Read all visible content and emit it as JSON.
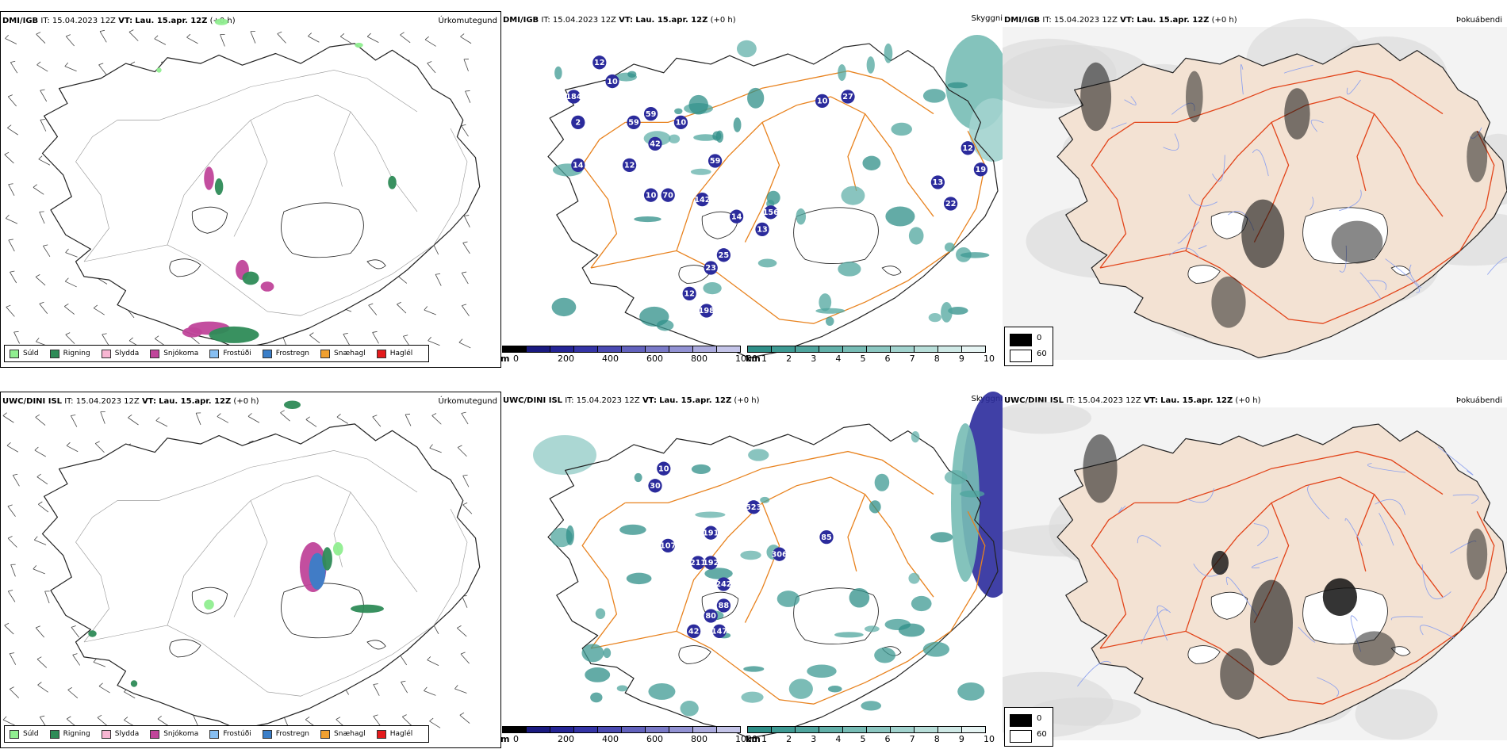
{
  "rows": [
    {
      "model": "DMI/IGB",
      "it_label": "IT:",
      "it_value": "15.04.2023 12Z",
      "vt_label": "VT:",
      "vt_value": "Lau. 15.apr. 12Z",
      "lead": "(+0 h)"
    },
    {
      "model": "UWC/DINI ISL",
      "it_label": "IT:",
      "it_value": "15.04.2023 12Z",
      "vt_label": "VT:",
      "vt_value": "Lau. 15.apr. 12Z",
      "lead": "(+0 h)"
    }
  ],
  "variables": {
    "precip_type": "Úrkomutegund",
    "visibility": "Skyggni",
    "fog": "Þokuábendi"
  },
  "precip_legend": [
    {
      "label": "Súld",
      "color": "#90ee90"
    },
    {
      "label": "Rigning",
      "color": "#2e8b57"
    },
    {
      "label": "Slydda",
      "color": "#f7b6d2"
    },
    {
      "label": "Snjókoma",
      "color": "#c0459a"
    },
    {
      "label": "Frostúði",
      "color": "#87bff2"
    },
    {
      "label": "Frostregn",
      "color": "#3a7ec8"
    },
    {
      "label": "Snæhagl",
      "color": "#f0a030"
    },
    {
      "label": "Haglél",
      "color": "#e41a1c"
    }
  ],
  "height_scale": {
    "unit": "m",
    "ticks": [
      "0",
      "200",
      "400",
      "600",
      "800",
      "1000"
    ],
    "colors": [
      "#000000",
      "#1a1a80",
      "#252596",
      "#3434a6",
      "#4a4ab2",
      "#6262bd",
      "#7a7ac8",
      "#9292d3",
      "#aaaadd",
      "#c4c4e8"
    ]
  },
  "vis_scale": {
    "unit": "km",
    "ticks": [
      "1",
      "2",
      "3",
      "4",
      "5",
      "6",
      "7",
      "8",
      "9",
      "10"
    ],
    "colors": [
      "#2f8f88",
      "#3e9a93",
      "#4fa59e",
      "#62b0a9",
      "#77bcb5",
      "#8cc7c1",
      "#a2d3ce",
      "#b8ded9",
      "#cfe9e6",
      "#e6f4f3"
    ]
  },
  "fog_scale": {
    "values": [
      "0",
      "60"
    ],
    "colors": [
      "#000000",
      "#ffffff"
    ]
  },
  "vis_points": {
    "top": [
      "184",
      "12",
      "10",
      "2",
      "59",
      "59",
      "42",
      "10",
      "14",
      "12",
      "10",
      "142",
      "59",
      "156",
      "13",
      "25",
      "23",
      "12",
      "198",
      "10",
      "27",
      "12",
      "19",
      "13",
      "22",
      "70",
      "14"
    ],
    "bottom": [
      "165",
      "142",
      "133",
      "10",
      "30",
      "523",
      "107",
      "191",
      "211",
      "192",
      "242",
      "88",
      "80",
      "147",
      "42",
      "85",
      "306"
    ]
  }
}
